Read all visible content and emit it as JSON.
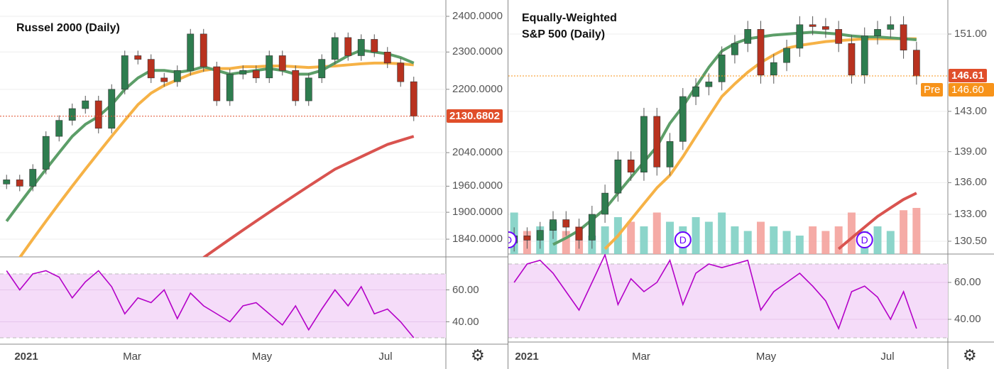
{
  "colors": {
    "up": "#2e7d4f",
    "down": "#b8321f",
    "ma_fast": "#5c9e68",
    "ma_mid": "#f6b246",
    "ma_slow": "#d9534f",
    "rsi_line": "#b400c8",
    "rsi_band": "#f5dcf9",
    "last_price": "#e04e2a",
    "pre_market": "#f7931a",
    "vol_up": "#7fd0c4",
    "vol_down": "#f4a29c",
    "dividend": "#6a00ff"
  },
  "chart_data": [
    {
      "type": "candlestick",
      "title": "Russel 2000 (Daily)",
      "scale": "log",
      "ylim": [
        1820,
        2440
      ],
      "price_ticks": [
        "2400.0000",
        "2300.0000",
        "2200.0000",
        "2040.0000",
        "1960.0000",
        "1900.0000",
        "1840.0000"
      ],
      "price_tick_values": [
        2400,
        2300,
        2200,
        2040,
        1960,
        1900,
        1840
      ],
      "last_price": 2130.6802,
      "last_price_label": "2130.6802",
      "x_labels": [
        "2021",
        "Mar",
        "May",
        "Jul"
      ],
      "close": [
        1975,
        1960,
        2000,
        2080,
        2120,
        2150,
        2170,
        2100,
        2200,
        2290,
        2280,
        2230,
        2220,
        2250,
        2350,
        2260,
        2170,
        2240,
        2250,
        2230,
        2290,
        2250,
        2170,
        2230,
        2280,
        2340,
        2290,
        2335,
        2300,
        2270,
        2220,
        2131
      ],
      "ma_fast": [
        1880,
        1920,
        1960,
        2000,
        2040,
        2080,
        2110,
        2130,
        2160,
        2200,
        2230,
        2250,
        2250,
        2245,
        2250,
        2260,
        2250,
        2240,
        2245,
        2250,
        2255,
        2250,
        2240,
        2240,
        2250,
        2270,
        2290,
        2305,
        2300,
        2295,
        2285,
        2270
      ],
      "ma_mid": [
        null,
        1800,
        1840,
        1880,
        1920,
        1960,
        2000,
        2040,
        2080,
        2120,
        2160,
        2190,
        2210,
        2225,
        2240,
        2250,
        2255,
        2255,
        2260,
        2260,
        2262,
        2262,
        2260,
        2258,
        2260,
        2262,
        2265,
        2268,
        2270,
        2270,
        2268,
        2265
      ],
      "ma_slow": [
        null,
        null,
        null,
        null,
        null,
        null,
        null,
        null,
        null,
        null,
        null,
        null,
        null,
        null,
        null,
        1800,
        1820,
        1840,
        1860,
        1880,
        1900,
        1920,
        1940,
        1960,
        1980,
        2000,
        2015,
        2030,
        2045,
        2060,
        2070,
        2080
      ],
      "rsi": [
        72,
        60,
        70,
        72,
        68,
        55,
        65,
        72,
        62,
        45,
        55,
        52,
        60,
        42,
        58,
        50,
        45,
        40,
        50,
        52,
        45,
        38,
        50,
        35,
        48,
        60,
        50,
        62,
        45,
        48,
        40,
        30
      ],
      "rsi_ticks": [
        "60.00",
        "40.00"
      ],
      "rsi_tick_values": [
        60,
        40
      ]
    },
    {
      "type": "candlestick",
      "title_line1": "Equally-Weighted",
      "title_line2": "S&P 500 (Daily)",
      "scale": "log",
      "ylim": [
        129.5,
        154
      ],
      "price_ticks": [
        "151.00",
        "143.00",
        "139.00",
        "136.00",
        "133.00",
        "130.50"
      ],
      "price_tick_values": [
        151,
        143,
        139,
        136,
        133,
        130.5
      ],
      "last_price": 146.61,
      "last_price_label": "146.61",
      "pre_label": "Pre",
      "pre_price_label": "146.60",
      "x_labels": [
        "2021",
        "Mar",
        "May",
        "Jul"
      ],
      "dividend_marker": "D",
      "close": [
        131,
        130.6,
        131.5,
        132.5,
        131.8,
        130.6,
        133,
        135,
        138.2,
        137,
        142.5,
        137.5,
        140,
        144.5,
        145.5,
        146,
        148.8,
        150,
        151.5,
        146.7,
        148,
        149.5,
        152,
        151.8,
        151.5,
        150,
        146.7,
        150.8,
        151.5,
        152,
        149.3,
        146.6
      ],
      "ma_fast": [
        null,
        null,
        null,
        130.2,
        130.8,
        131.5,
        132.5,
        133.5,
        135,
        136.5,
        138,
        139.5,
        141.8,
        143.5,
        145.5,
        147.5,
        149.2,
        150,
        150.5,
        150.7,
        150.9,
        151,
        151.1,
        151.2,
        151.1,
        151,
        150.8,
        150.7,
        150.7,
        150.6,
        150.5,
        150.4
      ],
      "ma_mid": [
        null,
        null,
        null,
        null,
        null,
        null,
        null,
        129.8,
        131,
        132.5,
        134,
        135.5,
        136.7,
        138.5,
        140.5,
        142.5,
        144.5,
        145.8,
        147,
        148,
        148.8,
        149.5,
        149.8,
        150,
        150.2,
        150.3,
        150.4,
        150.5,
        150.5,
        150.5,
        150.5,
        150.5
      ],
      "ma_slow": [
        null,
        null,
        null,
        null,
        null,
        null,
        null,
        null,
        null,
        null,
        null,
        null,
        null,
        null,
        null,
        null,
        null,
        null,
        null,
        null,
        null,
        null,
        null,
        null,
        null,
        129.8,
        130.8,
        131.8,
        132.8,
        133.6,
        134.4,
        135
      ],
      "volume": [
        0.9,
        0.5,
        0.6,
        0.7,
        0.5,
        0.6,
        0.4,
        0.6,
        0.8,
        0.7,
        0.6,
        0.9,
        0.7,
        0.6,
        0.8,
        0.7,
        0.9,
        0.6,
        0.5,
        0.7,
        0.6,
        0.5,
        0.4,
        0.6,
        0.5,
        0.6,
        0.9,
        0.5,
        0.6,
        0.5,
        0.95,
        1.0
      ],
      "dividend_positions": [
        0,
        13,
        27
      ],
      "rsi": [
        60,
        70,
        72,
        65,
        55,
        45,
        60,
        75,
        48,
        62,
        55,
        60,
        72,
        48,
        65,
        70,
        68,
        70,
        72,
        45,
        55,
        60,
        65,
        58,
        50,
        35,
        55,
        58,
        52,
        40,
        55,
        35
      ],
      "rsi_ticks": [
        "60.00",
        "40.00"
      ],
      "rsi_tick_values": [
        60,
        40
      ]
    }
  ]
}
